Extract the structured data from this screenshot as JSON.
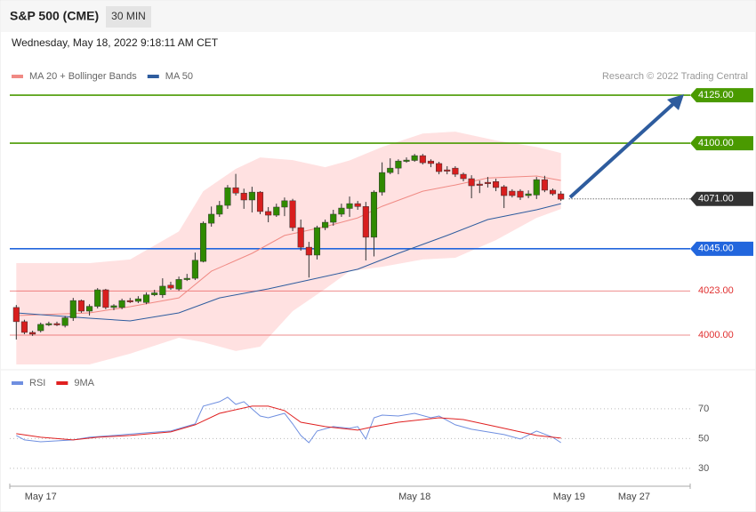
{
  "header": {
    "title": "S&P 500 (CME)",
    "interval": "30 MIN",
    "timestamp": "Wednesday, May 18, 2022 9:18:11 AM CET",
    "credit": "Research © 2022 Trading Central"
  },
  "chart_data": [
    {
      "type": "candlestick",
      "ylim": [
        3982.4,
        4130.6
      ],
      "xlim": [
        -0.8,
        82.9
      ],
      "candles": {
        "up_color": "#2f8a00",
        "down_color": "#d81e1e",
        "open": [
          4014.4,
          4007.0,
          4001.4,
          4002.3,
          4005.6,
          4006.0,
          4005.0,
          4009.0,
          4018.0,
          4012.5,
          4015.0,
          4023.6,
          4014.4,
          4014.4,
          4018.0,
          4017.6,
          4017.0,
          4021.0,
          4021.0,
          4026.0,
          4024.0,
          4029.0,
          4029.6,
          4038.4,
          4058.3,
          4063.0,
          4067.6,
          4076.8,
          4074.0,
          4070.4,
          4074.5,
          4064.4,
          4062.5,
          4066.7,
          4070.0,
          4056.0,
          4045.8,
          4041.7,
          4056.0,
          4058.8,
          4063.0,
          4066.0,
          4068.5,
          4067.0,
          4051.0,
          4074.5,
          4084.7,
          4087.0,
          4090.7,
          4091.0,
          4093.5,
          4090.7,
          4089.4,
          4086.1,
          4087.0,
          4083.8,
          4081.5,
          4078.7,
          4079.6,
          4080.0,
          4077.3,
          4075.0,
          4075.0,
          4072.7,
          4073.0,
          4081.0,
          4075.5,
          4073.6
        ],
        "high": [
          4015.7,
          4008.0,
          4002.3,
          4006.5,
          4007.0,
          4007.0,
          4010.0,
          4019.4,
          4018.5,
          4016.1,
          4024.5,
          4024.1,
          4016.1,
          4019.0,
          4019.4,
          4020.3,
          4022.3,
          4023.6,
          4029.6,
          4027.8,
          4030.5,
          4031.9,
          4043.0,
          4059.2,
          4067.0,
          4069.9,
          4078.2,
          4084.0,
          4076.3,
          4077.3,
          4075.0,
          4066.7,
          4068.5,
          4071.7,
          4071.0,
          4060.2,
          4048.6,
          4057.0,
          4060.2,
          4065.3,
          4068.5,
          4072.2,
          4069.9,
          4069.4,
          4075.4,
          4090.0,
          4092.1,
          4091.6,
          4092.6,
          4094.4,
          4094.4,
          4091.6,
          4090.3,
          4088.0,
          4088.0,
          4084.7,
          4083.3,
          4080.5,
          4082.4,
          4081.5,
          4078.2,
          4076.0,
          4076.0,
          4075.4,
          4082.4,
          4083.0,
          4076.4,
          4075.0
        ],
        "low": [
          3997.7,
          4000.5,
          3999.6,
          4001.4,
          4004.7,
          4004.7,
          4004.0,
          4007.4,
          4011.6,
          4010.2,
          4013.9,
          4013.5,
          4013.0,
          4013.5,
          4016.7,
          4016.7,
          4016.1,
          4020.3,
          4019.4,
          4023.6,
          4023.1,
          4028.2,
          4028.7,
          4037.9,
          4056.5,
          4061.6,
          4065.8,
          4072.7,
          4065.8,
          4063.9,
          4063.0,
          4058.8,
          4061.6,
          4062.0,
          4054.2,
          4044.0,
          4030.0,
          4039.4,
          4054.7,
          4057.0,
          4061.6,
          4061.6,
          4065.3,
          4038.9,
          4041.0,
          4072.7,
          4083.8,
          4083.8,
          4089.8,
          4090.3,
          4088.9,
          4087.5,
          4083.8,
          4083.8,
          4082.4,
          4080.1,
          4071.3,
          4074.0,
          4076.9,
          4075.0,
          4066.2,
          4071.7,
          4070.4,
          4071.3,
          4070.9,
          4074.5,
          4072.7,
          4069.9
        ],
        "close": [
          4007.0,
          4001.4,
          4000.5,
          4005.6,
          4006.0,
          4005.6,
          4009.0,
          4018.0,
          4012.5,
          4015.0,
          4023.6,
          4014.4,
          4015.3,
          4018.0,
          4017.6,
          4018.9,
          4021.0,
          4022.0,
          4025.5,
          4024.5,
          4029.0,
          4029.6,
          4039.0,
          4058.3,
          4063.0,
          4067.6,
          4076.8,
          4074.0,
          4070.4,
          4074.5,
          4064.4,
          4062.5,
          4066.7,
          4070.0,
          4056.0,
          4045.8,
          4041.7,
          4056.0,
          4058.8,
          4063.0,
          4066.2,
          4068.5,
          4067.0,
          4051.0,
          4074.5,
          4084.7,
          4087.0,
          4090.7,
          4091.2,
          4093.5,
          4089.8,
          4089.4,
          4085.2,
          4085.6,
          4083.8,
          4081.5,
          4077.8,
          4078.2,
          4079.2,
          4076.9,
          4072.7,
          4072.7,
          4071.8,
          4073.6,
          4081.0,
          4075.5,
          4073.6,
          4070.8
        ]
      },
      "bands": {
        "color": "#ffdede",
        "x": [
          0,
          9,
          14,
          20,
          23,
          27,
          30,
          34,
          38,
          41,
          45,
          50,
          54,
          59,
          64,
          67
        ],
        "upper": [
          4037.5,
          4037.5,
          4039.4,
          4054.0,
          4075.0,
          4086.6,
          4092.6,
          4091.2,
          4087.5,
          4091.0,
          4098.0,
          4105.0,
          4106.0,
          4101.4,
          4098.0,
          4094.9
        ],
        "lower": [
          3984.7,
          3984.7,
          3990.3,
          3998.6,
          3996.3,
          3991.7,
          3994.0,
          4012.5,
          4024.1,
          4033.3,
          4035.6,
          4039.4,
          4040.3,
          4049.5,
          4061.1,
          4065.7
        ]
      },
      "series": [
        {
          "name": "MA 20 + Bollinger Bands",
          "color": "#f08a84",
          "x": [
            0,
            9,
            14,
            20,
            24,
            29,
            33,
            38,
            42,
            45,
            50,
            54,
            58,
            64,
            67
          ],
          "values": [
            4010.2,
            4011.6,
            4014.8,
            4019.4,
            4033.3,
            4042.6,
            4051.9,
            4056.5,
            4061.1,
            4067.1,
            4075.0,
            4078.2,
            4081.9,
            4082.9,
            4080.6
          ]
        },
        {
          "name": "MA 50",
          "color": "#2e5c9e",
          "x": [
            0,
            9,
            14,
            20,
            25,
            31,
            36,
            42,
            47,
            53,
            58,
            64,
            67
          ],
          "values": [
            4011.6,
            4008.8,
            4007.4,
            4011.6,
            4019.4,
            4024.1,
            4028.7,
            4034.3,
            4042.6,
            4051.9,
            4060.2,
            4065.3,
            4068.5
          ]
        }
      ],
      "levels": [
        {
          "value": 4125,
          "label": "4125.00",
          "color": "#4a9a00",
          "boxed": true,
          "line": "solid"
        },
        {
          "value": 4100,
          "label": "4100.00",
          "color": "#4a9a00",
          "boxed": true,
          "line": "solid"
        },
        {
          "value": 4071,
          "label": "4071.00",
          "color": "#333333",
          "boxed": true,
          "line": "dotted"
        },
        {
          "value": 4045,
          "label": "4045.00",
          "color": "#2266dd",
          "boxed": true,
          "line": "solid"
        },
        {
          "value": 4023,
          "label": "4023.00",
          "color": "#e03030",
          "boxed": false,
          "line": "solid"
        },
        {
          "value": 4000,
          "label": "4000.00",
          "color": "#e03030",
          "boxed": false,
          "line": "solid"
        }
      ]
    },
    {
      "type": "line",
      "ylim": [
        22.2,
        81.9
      ],
      "xlim": [
        -0.8,
        82.9
      ],
      "yticks": [
        30,
        50,
        70
      ],
      "grid": true,
      "xticks": [
        {
          "value": 3,
          "label": "May 17"
        },
        {
          "value": 49,
          "label": "May 18"
        },
        {
          "value": 68,
          "label": "May 19"
        },
        {
          "value": 76,
          "label": "May 27"
        }
      ],
      "series": [
        {
          "name": "RSI",
          "color": "#6f8fe0",
          "x": [
            0,
            1,
            3,
            7,
            9,
            12,
            16,
            19,
            22,
            23,
            25,
            26,
            27,
            28,
            30,
            31,
            33,
            34,
            35,
            36,
            37,
            39,
            41,
            42,
            43,
            44,
            45,
            47,
            49,
            51,
            52,
            54,
            56,
            58,
            60,
            62,
            64,
            66,
            67
          ],
          "values": [
            52.1,
            49.1,
            47.9,
            49.1,
            50.9,
            52.1,
            53.9,
            55.1,
            59.9,
            71.8,
            74.8,
            77.8,
            73.0,
            74.8,
            65.2,
            64.0,
            67.0,
            59.9,
            52.1,
            47.3,
            55.1,
            58.1,
            56.9,
            58.1,
            49.7,
            64.0,
            65.8,
            65.2,
            67.0,
            64.0,
            65.2,
            59.3,
            56.3,
            54.5,
            52.7,
            49.7,
            55.1,
            50.9,
            47.3
          ]
        },
        {
          "name": "9MA",
          "color": "#e02020",
          "x": [
            0,
            3,
            7,
            10,
            14,
            19,
            22,
            25,
            29,
            31,
            33,
            35,
            38,
            42,
            44,
            47,
            52,
            55,
            59,
            64,
            67
          ],
          "values": [
            53.3,
            50.9,
            49.1,
            50.9,
            52.1,
            54.5,
            59.3,
            67.0,
            71.8,
            71.8,
            68.8,
            61.0,
            58.1,
            55.7,
            58.1,
            61.0,
            64.0,
            62.8,
            58.1,
            52.1,
            50.3
          ]
        }
      ]
    }
  ]
}
